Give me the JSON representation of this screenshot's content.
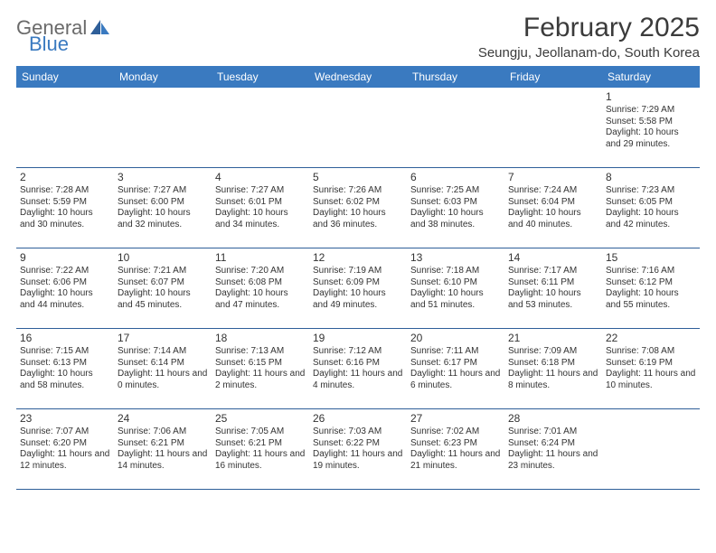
{
  "logo": {
    "word1": "General",
    "word2": "Blue",
    "icon_color": "#2f5f99"
  },
  "title": "February 2025",
  "location": "Seungju, Jeollanam-do, South Korea",
  "colors": {
    "header_bg": "#3a7ac0",
    "header_text": "#ffffff",
    "row_border": "#2f5f99",
    "text": "#333333",
    "logo_gray": "#6a6a6a",
    "logo_blue": "#3a7ac0",
    "background": "#ffffff"
  },
  "days_of_week": [
    "Sunday",
    "Monday",
    "Tuesday",
    "Wednesday",
    "Thursday",
    "Friday",
    "Saturday"
  ],
  "weeks": [
    [
      null,
      null,
      null,
      null,
      null,
      null,
      {
        "n": "1",
        "sunrise": "Sunrise: 7:29 AM",
        "sunset": "Sunset: 5:58 PM",
        "daylight": "Daylight: 10 hours and 29 minutes."
      }
    ],
    [
      {
        "n": "2",
        "sunrise": "Sunrise: 7:28 AM",
        "sunset": "Sunset: 5:59 PM",
        "daylight": "Daylight: 10 hours and 30 minutes."
      },
      {
        "n": "3",
        "sunrise": "Sunrise: 7:27 AM",
        "sunset": "Sunset: 6:00 PM",
        "daylight": "Daylight: 10 hours and 32 minutes."
      },
      {
        "n": "4",
        "sunrise": "Sunrise: 7:27 AM",
        "sunset": "Sunset: 6:01 PM",
        "daylight": "Daylight: 10 hours and 34 minutes."
      },
      {
        "n": "5",
        "sunrise": "Sunrise: 7:26 AM",
        "sunset": "Sunset: 6:02 PM",
        "daylight": "Daylight: 10 hours and 36 minutes."
      },
      {
        "n": "6",
        "sunrise": "Sunrise: 7:25 AM",
        "sunset": "Sunset: 6:03 PM",
        "daylight": "Daylight: 10 hours and 38 minutes."
      },
      {
        "n": "7",
        "sunrise": "Sunrise: 7:24 AM",
        "sunset": "Sunset: 6:04 PM",
        "daylight": "Daylight: 10 hours and 40 minutes."
      },
      {
        "n": "8",
        "sunrise": "Sunrise: 7:23 AM",
        "sunset": "Sunset: 6:05 PM",
        "daylight": "Daylight: 10 hours and 42 minutes."
      }
    ],
    [
      {
        "n": "9",
        "sunrise": "Sunrise: 7:22 AM",
        "sunset": "Sunset: 6:06 PM",
        "daylight": "Daylight: 10 hours and 44 minutes."
      },
      {
        "n": "10",
        "sunrise": "Sunrise: 7:21 AM",
        "sunset": "Sunset: 6:07 PM",
        "daylight": "Daylight: 10 hours and 45 minutes."
      },
      {
        "n": "11",
        "sunrise": "Sunrise: 7:20 AM",
        "sunset": "Sunset: 6:08 PM",
        "daylight": "Daylight: 10 hours and 47 minutes."
      },
      {
        "n": "12",
        "sunrise": "Sunrise: 7:19 AM",
        "sunset": "Sunset: 6:09 PM",
        "daylight": "Daylight: 10 hours and 49 minutes."
      },
      {
        "n": "13",
        "sunrise": "Sunrise: 7:18 AM",
        "sunset": "Sunset: 6:10 PM",
        "daylight": "Daylight: 10 hours and 51 minutes."
      },
      {
        "n": "14",
        "sunrise": "Sunrise: 7:17 AM",
        "sunset": "Sunset: 6:11 PM",
        "daylight": "Daylight: 10 hours and 53 minutes."
      },
      {
        "n": "15",
        "sunrise": "Sunrise: 7:16 AM",
        "sunset": "Sunset: 6:12 PM",
        "daylight": "Daylight: 10 hours and 55 minutes."
      }
    ],
    [
      {
        "n": "16",
        "sunrise": "Sunrise: 7:15 AM",
        "sunset": "Sunset: 6:13 PM",
        "daylight": "Daylight: 10 hours and 58 minutes."
      },
      {
        "n": "17",
        "sunrise": "Sunrise: 7:14 AM",
        "sunset": "Sunset: 6:14 PM",
        "daylight": "Daylight: 11 hours and 0 minutes."
      },
      {
        "n": "18",
        "sunrise": "Sunrise: 7:13 AM",
        "sunset": "Sunset: 6:15 PM",
        "daylight": "Daylight: 11 hours and 2 minutes."
      },
      {
        "n": "19",
        "sunrise": "Sunrise: 7:12 AM",
        "sunset": "Sunset: 6:16 PM",
        "daylight": "Daylight: 11 hours and 4 minutes."
      },
      {
        "n": "20",
        "sunrise": "Sunrise: 7:11 AM",
        "sunset": "Sunset: 6:17 PM",
        "daylight": "Daylight: 11 hours and 6 minutes."
      },
      {
        "n": "21",
        "sunrise": "Sunrise: 7:09 AM",
        "sunset": "Sunset: 6:18 PM",
        "daylight": "Daylight: 11 hours and 8 minutes."
      },
      {
        "n": "22",
        "sunrise": "Sunrise: 7:08 AM",
        "sunset": "Sunset: 6:19 PM",
        "daylight": "Daylight: 11 hours and 10 minutes."
      }
    ],
    [
      {
        "n": "23",
        "sunrise": "Sunrise: 7:07 AM",
        "sunset": "Sunset: 6:20 PM",
        "daylight": "Daylight: 11 hours and 12 minutes."
      },
      {
        "n": "24",
        "sunrise": "Sunrise: 7:06 AM",
        "sunset": "Sunset: 6:21 PM",
        "daylight": "Daylight: 11 hours and 14 minutes."
      },
      {
        "n": "25",
        "sunrise": "Sunrise: 7:05 AM",
        "sunset": "Sunset: 6:21 PM",
        "daylight": "Daylight: 11 hours and 16 minutes."
      },
      {
        "n": "26",
        "sunrise": "Sunrise: 7:03 AM",
        "sunset": "Sunset: 6:22 PM",
        "daylight": "Daylight: 11 hours and 19 minutes."
      },
      {
        "n": "27",
        "sunrise": "Sunrise: 7:02 AM",
        "sunset": "Sunset: 6:23 PM",
        "daylight": "Daylight: 11 hours and 21 minutes."
      },
      {
        "n": "28",
        "sunrise": "Sunrise: 7:01 AM",
        "sunset": "Sunset: 6:24 PM",
        "daylight": "Daylight: 11 hours and 23 minutes."
      },
      null
    ]
  ]
}
